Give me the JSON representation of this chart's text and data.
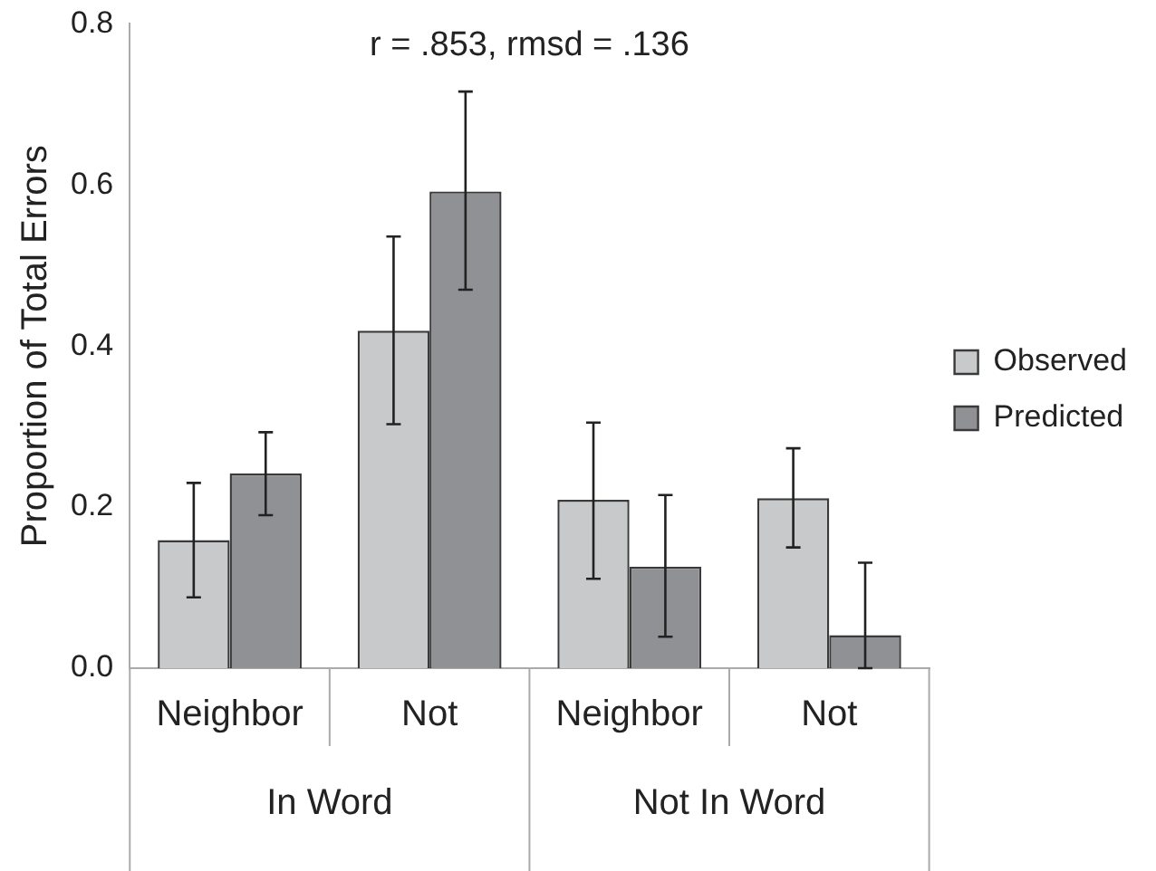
{
  "chart_data": {
    "type": "bar",
    "title": "r = .853, rmsd = .136",
    "ylabel": "Proportion of Total Errors",
    "categories": [
      "Neighbor",
      "Not",
      "Neighbor",
      "Not"
    ],
    "series": [
      {
        "name": "Observed",
        "color": "#c8c9cb",
        "values": [
          0.159,
          0.419,
          0.209,
          0.211
        ],
        "errors": [
          [
            0.088,
            0.23
          ],
          [
            0.303,
            0.536
          ],
          [
            0.111,
            0.305
          ],
          [
            0.15,
            0.273
          ]
        ]
      },
      {
        "name": "Predicted",
        "color": "#909195",
        "values": [
          0.242,
          0.592,
          0.126,
          0.041
        ],
        "errors": [
          [
            0.19,
            0.293
          ],
          [
            0.47,
            0.716
          ],
          [
            0.039,
            0.215
          ],
          [
            0,
            0.131
          ]
        ]
      }
    ],
    "annotations": [
      "In Word",
      "Not In Word"
    ],
    "ylim": [
      0,
      0.8
    ],
    "yticks": [
      {
        "value": 0,
        "label": "0.0"
      },
      {
        "value": 0.2,
        "label": "0.2"
      },
      {
        "value": 0.4,
        "label": "0.4"
      },
      {
        "value": 0.6,
        "label": "0.6"
      },
      {
        "value": 0.8,
        "label": "0.8"
      }
    ],
    "grid": false,
    "legend": "right"
  }
}
